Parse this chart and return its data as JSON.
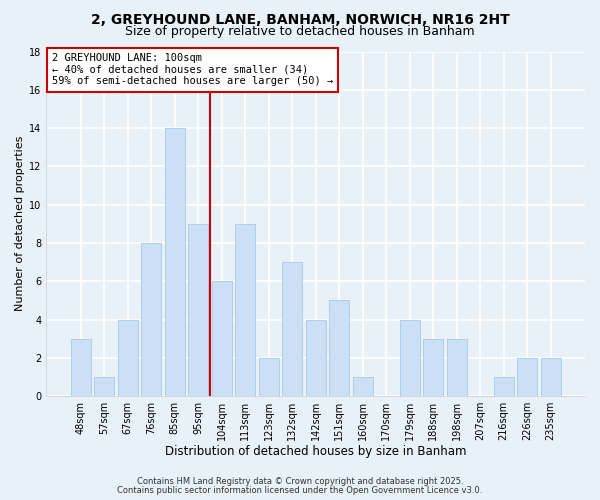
{
  "title1": "2, GREYHOUND LANE, BANHAM, NORWICH, NR16 2HT",
  "title2": "Size of property relative to detached houses in Banham",
  "xlabel": "Distribution of detached houses by size in Banham",
  "ylabel": "Number of detached properties",
  "bar_labels": [
    "48sqm",
    "57sqm",
    "67sqm",
    "76sqm",
    "85sqm",
    "95sqm",
    "104sqm",
    "113sqm",
    "123sqm",
    "132sqm",
    "142sqm",
    "151sqm",
    "160sqm",
    "170sqm",
    "179sqm",
    "188sqm",
    "198sqm",
    "207sqm",
    "216sqm",
    "226sqm",
    "235sqm"
  ],
  "bar_values": [
    3,
    1,
    4,
    8,
    14,
    9,
    6,
    9,
    2,
    7,
    4,
    5,
    1,
    0,
    4,
    3,
    3,
    0,
    1,
    2,
    2
  ],
  "bar_color": "#cce0f5",
  "bar_edge_color": "#a8c8e8",
  "ylim": [
    0,
    18
  ],
  "yticks": [
    0,
    2,
    4,
    6,
    8,
    10,
    12,
    14,
    16,
    18
  ],
  "vline_x": 5.5,
  "vline_color": "#cc0000",
  "annotation_text": "2 GREYHOUND LANE: 100sqm\n← 40% of detached houses are smaller (34)\n59% of semi-detached houses are larger (50) →",
  "annotation_box_color": "#ffffff",
  "annotation_box_edge": "#cc0000",
  "footer1": "Contains HM Land Registry data © Crown copyright and database right 2025.",
  "footer2": "Contains public sector information licensed under the Open Government Licence v3.0.",
  "bg_color": "#e8f0f8",
  "plot_bg_color": "#e8f0f8",
  "grid_color": "#ffffff",
  "title1_fontsize": 10,
  "title2_fontsize": 9,
  "xlabel_fontsize": 8.5,
  "ylabel_fontsize": 8,
  "tick_fontsize": 7,
  "footer_fontsize": 6,
  "annotation_fontsize": 7.5
}
